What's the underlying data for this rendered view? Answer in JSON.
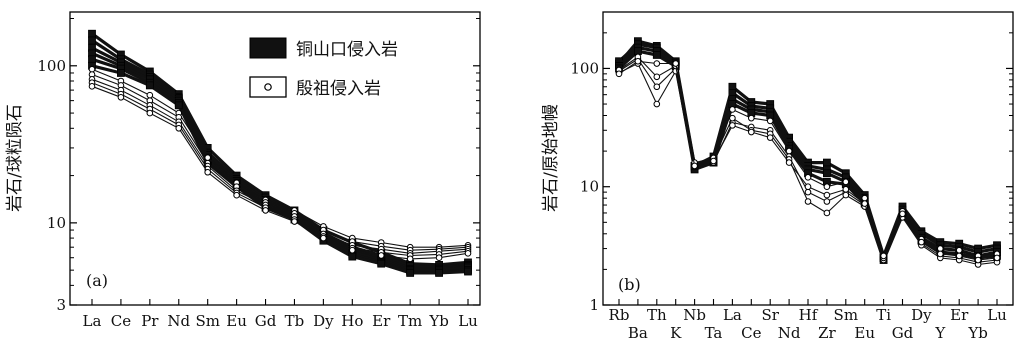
{
  "chart_data": [
    {
      "id": "a",
      "type": "line",
      "panel_label": "(a)",
      "ylabel": "岩石/球粒陨石",
      "yscale": "log",
      "ylim": [
        3,
        220
      ],
      "yticks": [
        3,
        10,
        100
      ],
      "ytick_labels": [
        "3",
        "10",
        "100"
      ],
      "categories": [
        "La",
        "Ce",
        "Pr",
        "Nd",
        "Sm",
        "Eu",
        "Gd",
        "Tb",
        "Dy",
        "Ho",
        "Er",
        "Tm",
        "Yb",
        "Lu"
      ],
      "legend": {
        "placement": "top-right",
        "entries": [
          {
            "label": "铜山口侵入岩",
            "marker": "filled-square"
          },
          {
            "label": "殷祖侵入岩",
            "marker": "open-circle"
          }
        ]
      },
      "series": [
        {
          "group": "filled-square",
          "values": [
            160,
            118,
            92,
            66,
            30,
            20,
            15,
            12,
            9,
            7.5,
            6.5,
            5.5,
            5.4,
            5.6
          ]
        },
        {
          "group": "filled-square",
          "values": [
            145,
            110,
            88,
            63,
            28,
            19,
            14.5,
            11.5,
            8.6,
            7.0,
            6.2,
            5.3,
            5.2,
            5.4
          ]
        },
        {
          "group": "filled-square",
          "values": [
            130,
            105,
            85,
            62,
            27,
            18.5,
            14,
            11.2,
            8.3,
            6.7,
            6.0,
            5.1,
            5.1,
            5.3
          ]
        },
        {
          "group": "filled-square",
          "values": [
            120,
            100,
            82,
            60,
            26,
            18,
            13.5,
            11,
            8.1,
            6.5,
            5.8,
            5.0,
            5.0,
            5.2
          ]
        },
        {
          "group": "filled-square",
          "values": [
            110,
            96,
            78,
            58,
            25,
            17.5,
            13,
            10.8,
            7.9,
            6.3,
            5.6,
            4.9,
            4.9,
            5.0
          ]
        },
        {
          "group": "filled-square",
          "values": [
            100,
            90,
            75,
            56,
            24,
            17,
            12.5,
            10.5,
            7.7,
            6.1,
            5.5,
            4.8,
            4.8,
            4.9
          ]
        },
        {
          "group": "open-circle",
          "values": [
            95,
            80,
            65,
            50,
            26,
            18,
            14,
            12,
            9.5,
            8.0,
            7.5,
            7.0,
            7.0,
            7.2
          ]
        },
        {
          "group": "open-circle",
          "values": [
            88,
            75,
            60,
            47,
            24,
            17,
            13.5,
            11.5,
            9.0,
            7.6,
            7.1,
            6.7,
            6.8,
            7.0
          ]
        },
        {
          "group": "open-circle",
          "values": [
            82,
            70,
            56,
            44,
            23,
            16,
            13,
            11,
            8.5,
            7.2,
            6.8,
            6.4,
            6.6,
            6.8
          ]
        },
        {
          "group": "open-circle",
          "values": [
            78,
            66,
            53,
            42,
            22,
            15.5,
            12.5,
            10.5,
            8.2,
            6.9,
            6.5,
            6.2,
            6.3,
            6.6
          ]
        },
        {
          "group": "open-circle",
          "values": [
            74,
            63,
            50,
            40,
            21,
            15,
            12,
            10.2,
            8.0,
            6.7,
            6.2,
            5.9,
            6.0,
            6.4
          ]
        }
      ]
    },
    {
      "id": "b",
      "type": "line",
      "panel_label": "(b)",
      "ylabel": "岩石/原始地幔",
      "yscale": "log",
      "ylim": [
        1,
        300
      ],
      "yticks": [
        1,
        10,
        100
      ],
      "ytick_labels": [
        "1",
        "10",
        "100"
      ],
      "categories": [
        "Rb",
        "Ba",
        "Th",
        "K",
        "Nb",
        "Ta",
        "La",
        "Ce",
        "Sr",
        "Nd",
        "Hf",
        "Zr",
        "Sm",
        "Eu",
        "Ti",
        "Gd",
        "Dy",
        "Y",
        "Er",
        "Yb",
        "Lu"
      ],
      "series": [
        {
          "group": "filled-square",
          "values": [
            110,
            170,
            155,
            115,
            15,
            18,
            70,
            52,
            50,
            26,
            16,
            16,
            13,
            8.5,
            2.6,
            6.8,
            4.2,
            3.4,
            3.3,
            3.0,
            3.2
          ]
        },
        {
          "group": "filled-square",
          "values": [
            115,
            160,
            150,
            112,
            14.5,
            17,
            62,
            48,
            46,
            24,
            15,
            14,
            12,
            8.0,
            2.5,
            6.4,
            4.0,
            3.2,
            3.1,
            2.8,
            3.0
          ]
        },
        {
          "group": "filled-square",
          "values": [
            105,
            150,
            140,
            108,
            14,
            16,
            55,
            45,
            43,
            22,
            14,
            13,
            11,
            7.5,
            2.5,
            6.0,
            3.7,
            3.0,
            2.9,
            2.6,
            2.8
          ]
        },
        {
          "group": "filled-square",
          "values": [
            100,
            140,
            130,
            104,
            15,
            16,
            50,
            42,
            40,
            21,
            13,
            11,
            10.5,
            7.2,
            2.4,
            5.8,
            3.5,
            2.8,
            2.7,
            2.5,
            2.6
          ]
        },
        {
          "group": "open-circle",
          "values": [
            95,
            120,
            70,
            100,
            15,
            17,
            45,
            38,
            36,
            20,
            12,
            10,
            11,
            8.0,
            2.6,
            6.2,
            3.6,
            3.0,
            2.9,
            2.6,
            2.7
          ]
        },
        {
          "group": "open-circle",
          "values": [
            92,
            110,
            50,
            95,
            15.5,
            16,
            35,
            32,
            30,
            18,
            9,
            7.5,
            9,
            7.0,
            2.4,
            5.6,
            3.3,
            2.6,
            2.5,
            2.3,
            2.4
          ]
        },
        {
          "group": "open-circle",
          "values": [
            97,
            125,
            85,
            105,
            16,
            17.5,
            38,
            30,
            28,
            17,
            7.5,
            6.0,
            8.5,
            6.8,
            2.5,
            5.5,
            3.2,
            2.5,
            2.4,
            2.2,
            2.3
          ]
        },
        {
          "group": "open-circle",
          "values": [
            90,
            115,
            110,
            110,
            15,
            16.5,
            33,
            29,
            26,
            16,
            10,
            8.5,
            9.5,
            7.2,
            2.6,
            5.9,
            3.4,
            2.7,
            2.6,
            2.4,
            2.5
          ]
        }
      ]
    }
  ]
}
